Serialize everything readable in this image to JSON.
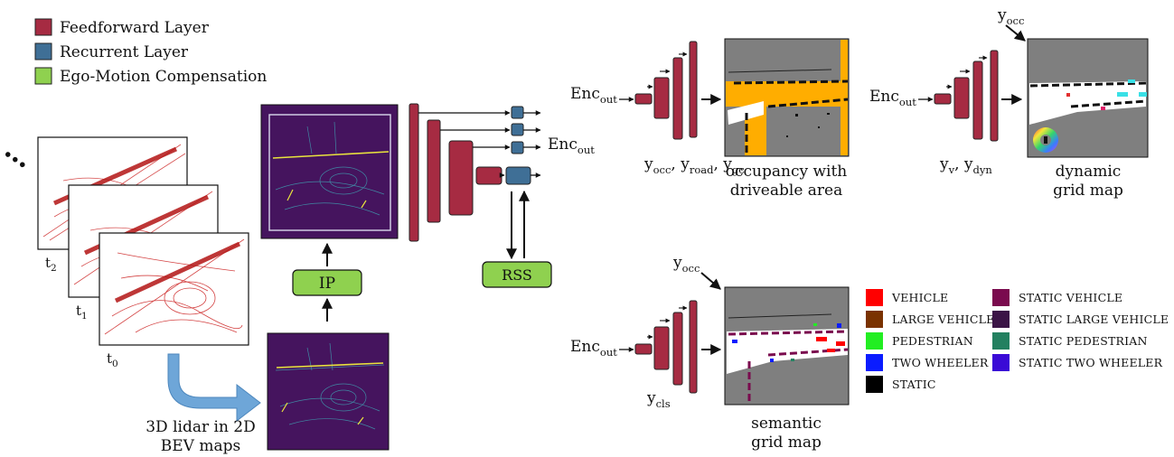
{
  "legend": {
    "items": [
      {
        "label": "Feedforward Layer",
        "color": "#a62b42"
      },
      {
        "label": "Recurrent Layer",
        "color": "#3f6f96"
      },
      {
        "label": "Ego-Motion Compensation",
        "color": "#8fd14f"
      }
    ]
  },
  "input": {
    "ellipsis": "…",
    "frames": [
      {
        "base": "t",
        "sub": "2"
      },
      {
        "base": "t",
        "sub": "1"
      },
      {
        "base": "t",
        "sub": "0"
      }
    ],
    "caption_line1": "3D lidar in 2D",
    "caption_line2": "BEV maps"
  },
  "encoder": {
    "ip_label": "IP",
    "rss_label": "RSS",
    "output": {
      "base": "Enc",
      "sub": "out"
    }
  },
  "heads": {
    "enc_base": "Enc",
    "enc_sub": "out",
    "occupancy": {
      "outputs": [
        {
          "base": "y",
          "sub": "occ"
        },
        {
          "base": "y",
          "sub": "road"
        },
        {
          "base": "y",
          "sub": "gc"
        }
      ],
      "caption_line1": "occupancy with",
      "caption_line2": "driveable area"
    },
    "dynamic": {
      "input": {
        "base": "y",
        "sub": "occ"
      },
      "outputs": [
        {
          "base": "y",
          "sub": "v"
        },
        {
          "base": "y",
          "sub": "dyn"
        }
      ],
      "caption_line1": "dynamic",
      "caption_line2": "grid map"
    },
    "semantic": {
      "input": {
        "base": "y",
        "sub": "occ"
      },
      "outputs": [
        {
          "base": "y",
          "sub": "cls"
        }
      ],
      "caption_line1": "semantic",
      "caption_line2": "grid map"
    }
  },
  "classes": {
    "items": [
      {
        "label": "VEHICLE",
        "color": "#ff0000"
      },
      {
        "label": "LARGE VEHICLE",
        "color": "#7a3200"
      },
      {
        "label": "PEDESTRIAN",
        "color": "#22ee22"
      },
      {
        "label": "TWO WHEELER",
        "color": "#0a1cff"
      },
      {
        "label": "STATIC",
        "color": "#000000"
      },
      {
        "label": "STATIC VEHICLE",
        "color": "#7a0a4e"
      },
      {
        "label": "STATIC LARGE VEHICLE",
        "color": "#3b1446"
      },
      {
        "label": "STATIC PEDESTRIAN",
        "color": "#238060"
      },
      {
        "label": "STATIC TWO WHEELER",
        "color": "#3a0ad6"
      }
    ]
  }
}
